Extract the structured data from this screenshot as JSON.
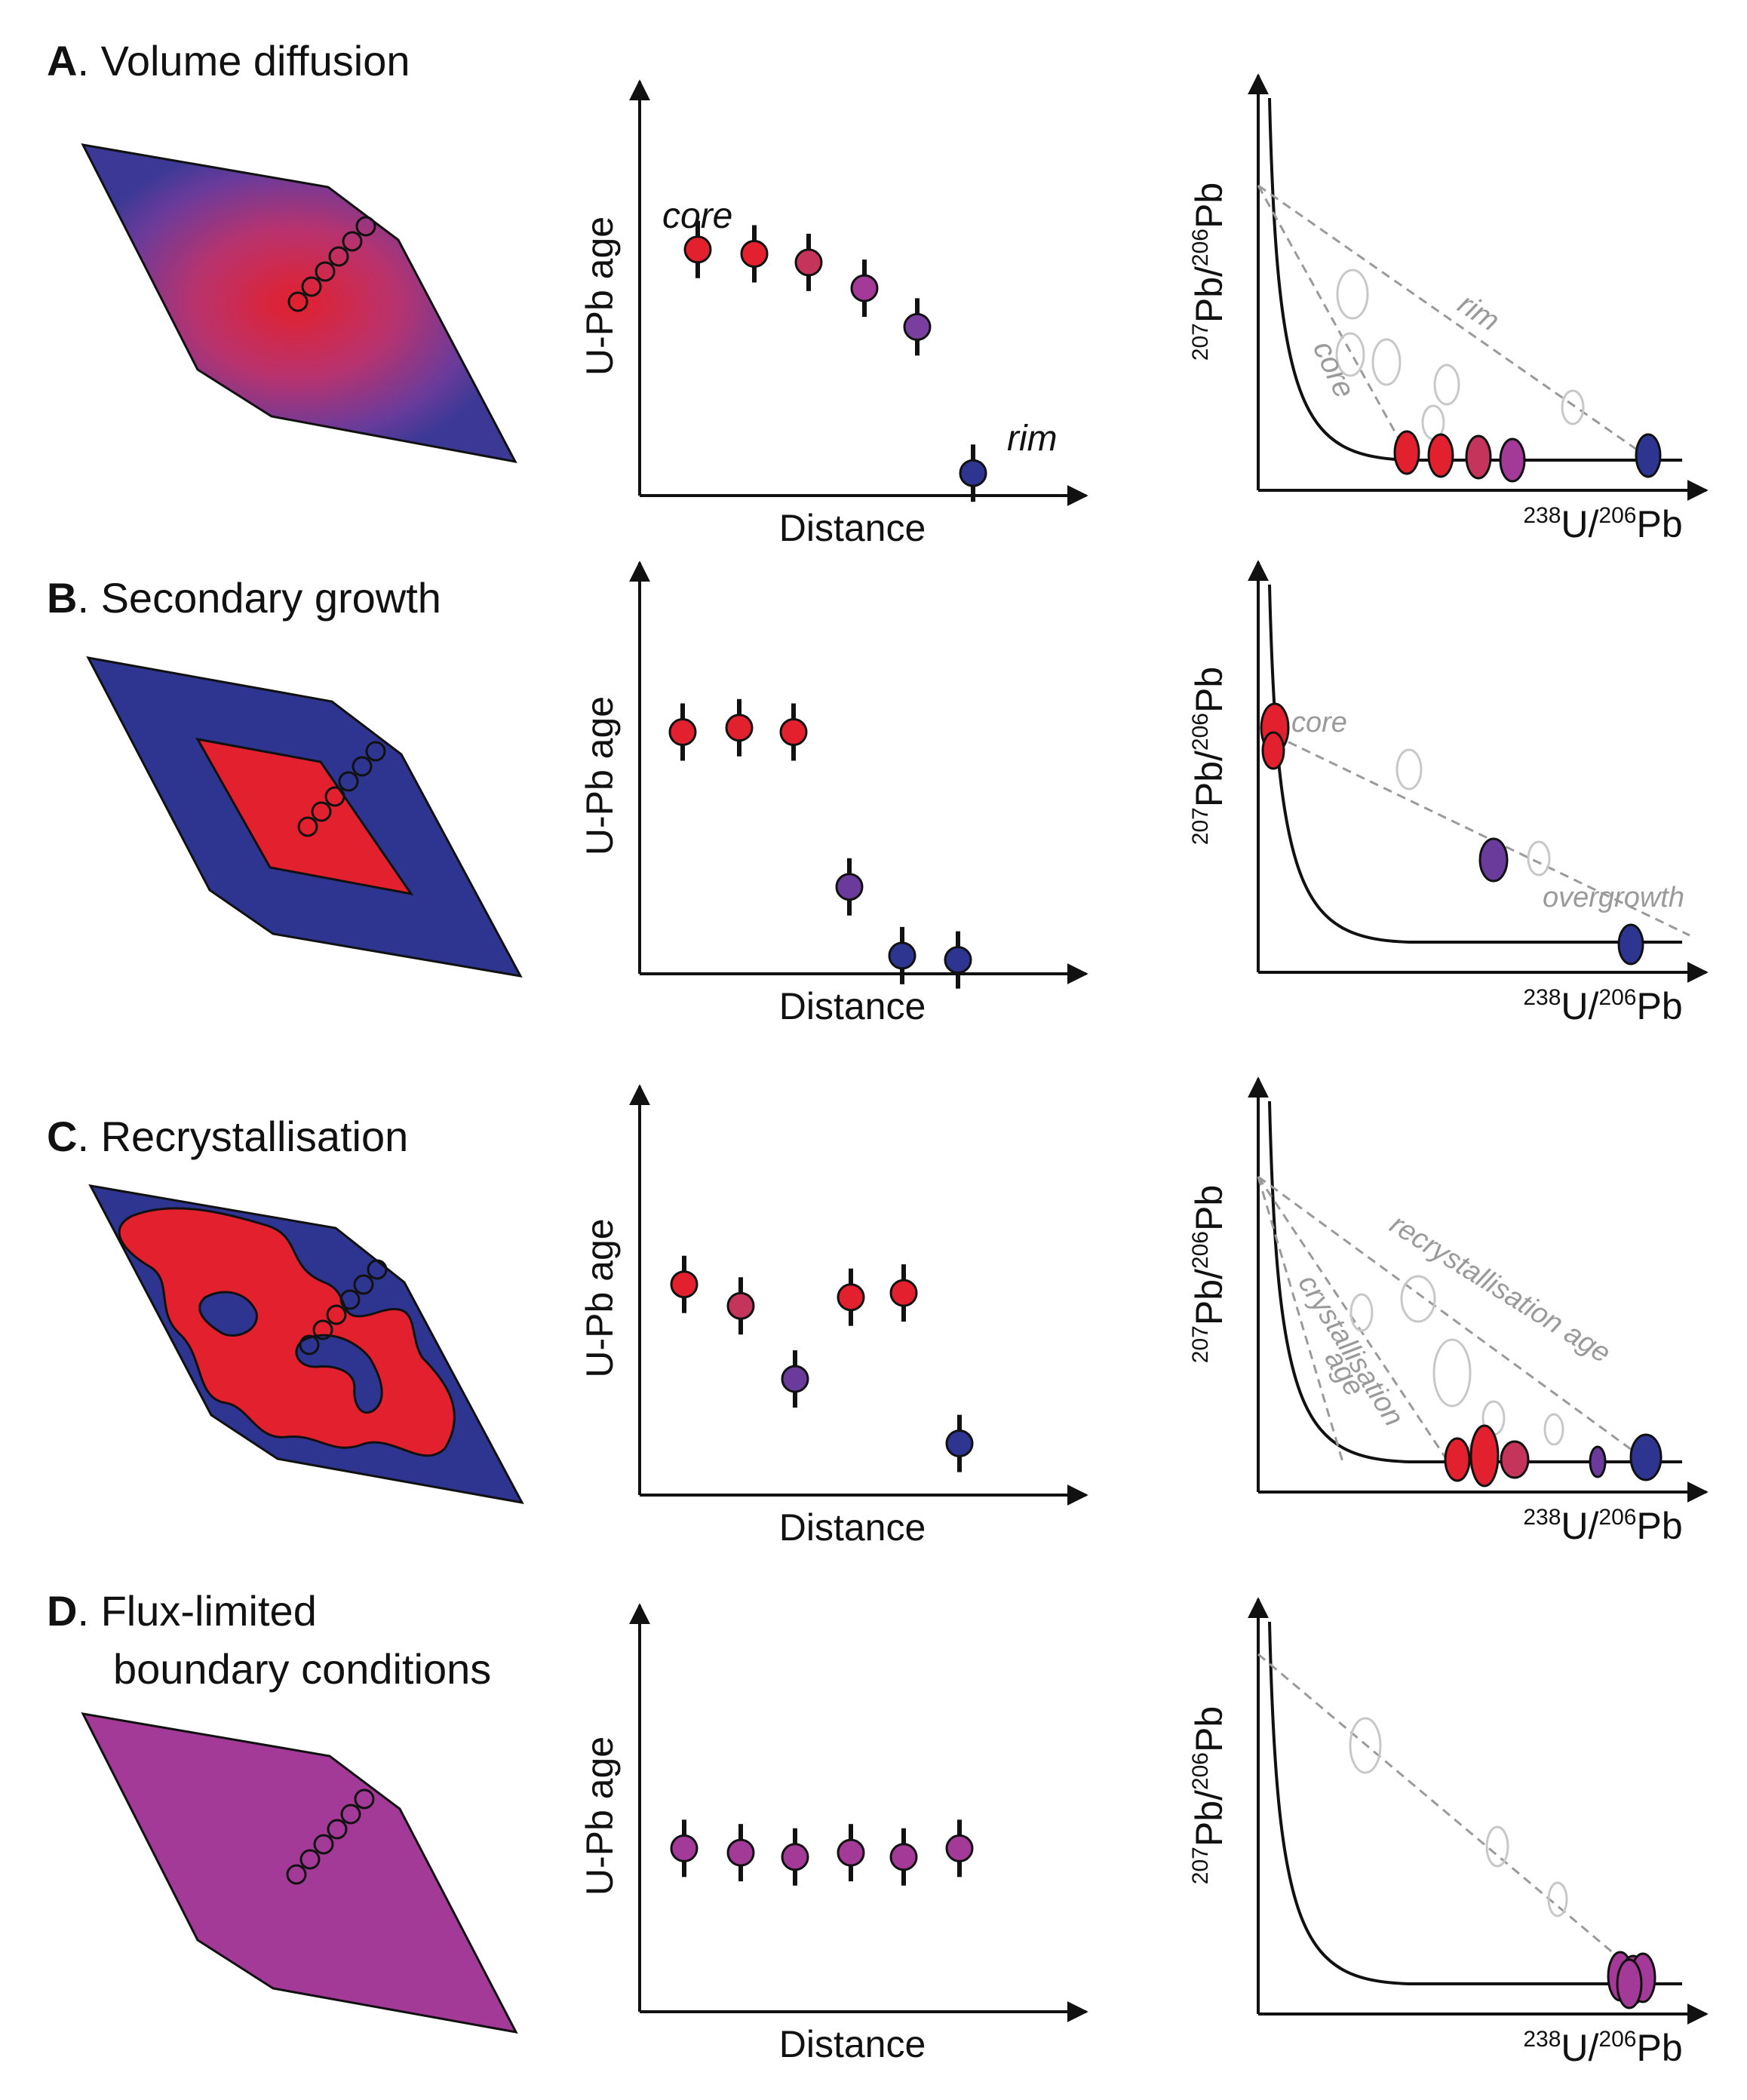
{
  "panels": [
    {
      "letter": "A",
      "title": ". Volume diffusion",
      "profile_ages": [
        6.6,
        6.5,
        6.3,
        5.7,
        4.8,
        1.4
      ],
      "profile_colors": [
        "#e3202d",
        "#e3202d",
        "#c5345a",
        "#a43a98",
        "#7a3f9e",
        "#2e3591"
      ],
      "profile_labels": {
        "core": "core",
        "rim": "rim"
      },
      "tw_notes": [
        "core",
        "rim"
      ]
    },
    {
      "letter": "B",
      "title": ". Secondary growth",
      "profile_ages": [
        6.5,
        6.6,
        6.5,
        2.9,
        1.3,
        1.2
      ],
      "profile_colors": [
        "#e3202d",
        "#e3202d",
        "#e3202d",
        "#6a3b9b",
        "#2e3591",
        "#2e3591"
      ],
      "tw_notes": [
        "core",
        "overgrowth"
      ]
    },
    {
      "letter": "C",
      "title": ". Recrystallisation",
      "profile_ages": [
        4.9,
        4.4,
        2.7,
        4.6,
        4.7,
        1.2
      ],
      "profile_colors": [
        "#e3202d",
        "#c5345a",
        "#6a3b9b",
        "#e3202d",
        "#e3202d",
        "#2e3591"
      ],
      "tw_notes": [
        "crystallisation",
        "age",
        "recrystallisation age"
      ]
    },
    {
      "letter": "D",
      "title": ". Flux-limited",
      "title2": "boundary conditions",
      "profile_ages": [
        3.8,
        3.7,
        3.6,
        3.7,
        3.6,
        3.8
      ],
      "profile_colors": [
        "#a43a98",
        "#a43a98",
        "#a43a98",
        "#a43a98",
        "#a43a98",
        "#a43a98"
      ],
      "tw_notes": []
    }
  ],
  "axes": {
    "profile_x": "Distance",
    "profile_y": "U-Pb age",
    "tw_y": {
      "sup1": "207",
      "t1": "Pb/",
      "sup2": "206",
      "t2": "Pb"
    },
    "tw_x": {
      "sup1": "238",
      "t1": "U/",
      "sup2": "206",
      "t2": "Pb"
    }
  },
  "colors": {
    "core": "#e3202d",
    "rim": "#2e3591",
    "mixed": "#a43a98",
    "grey": "#9a9a9a"
  }
}
